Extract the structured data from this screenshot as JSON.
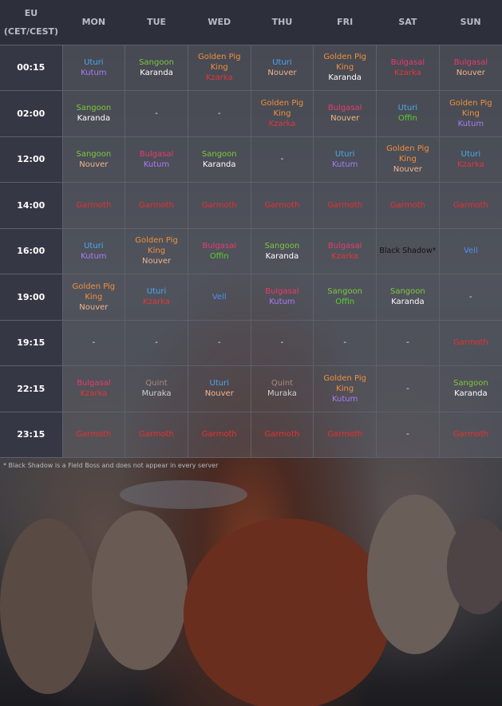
{
  "header": {
    "region": "EU",
    "timezone": "(CET/CEST)",
    "days": [
      "MON",
      "TUE",
      "WED",
      "THU",
      "FRI",
      "SAT",
      "SUN"
    ]
  },
  "boss_colors": {
    "Uturi": "#4aa8f0",
    "Kutum": "#a97cf5",
    "Sangoon": "#7cc93a",
    "Karanda": "#ffffff",
    "Golden Pig King": "#f0903c",
    "Kzarka": "#e0383a",
    "Nouver": "#f2b48a",
    "Bulgasal": "#e83b6a",
    "Offin": "#5ad02a",
    "Garmoth": "#e83030",
    "Vell": "#4a90f0",
    "Quint": "#a8887c",
    "Muraka": "#d0d0d0",
    "Black Shadow*": "#111111",
    "-": "#eeeeee"
  },
  "rows": [
    {
      "time": "00:15",
      "cells": [
        [
          "Uturi",
          "Kutum"
        ],
        [
          "Sangoon",
          "Karanda"
        ],
        [
          "Golden Pig King",
          "Kzarka"
        ],
        [
          "Uturi",
          "Nouver"
        ],
        [
          "Golden Pig King",
          "Karanda"
        ],
        [
          "Bulgasal",
          "Kzarka"
        ],
        [
          "Bulgasal",
          "Nouver"
        ]
      ]
    },
    {
      "time": "02:00",
      "cells": [
        [
          "Sangoon",
          "Karanda"
        ],
        [
          "-"
        ],
        [
          "-"
        ],
        [
          "Golden Pig King",
          "Kzarka"
        ],
        [
          "Bulgasal",
          "Nouver"
        ],
        [
          "Uturi",
          "Offin"
        ],
        [
          "Golden Pig King",
          "Kutum"
        ]
      ]
    },
    {
      "time": "12:00",
      "cells": [
        [
          "Sangoon",
          "Nouver"
        ],
        [
          "Bulgasal",
          "Kutum"
        ],
        [
          "Sangoon",
          "Karanda"
        ],
        [
          "-"
        ],
        [
          "Uturi",
          "Kutum"
        ],
        [
          "Golden Pig King",
          "Nouver"
        ],
        [
          "Uturi",
          "Kzarka"
        ]
      ]
    },
    {
      "time": "14:00",
      "cells": [
        [
          "Garmoth"
        ],
        [
          "Garmoth"
        ],
        [
          "Garmoth"
        ],
        [
          "Garmoth"
        ],
        [
          "Garmoth"
        ],
        [
          "Garmoth"
        ],
        [
          "Garmoth"
        ]
      ]
    },
    {
      "time": "16:00",
      "cells": [
        [
          "Uturi",
          "Kutum"
        ],
        [
          "Golden Pig King",
          "Nouver"
        ],
        [
          "Bulgasal",
          "Offin"
        ],
        [
          "Sangoon",
          "Karanda"
        ],
        [
          "Bulgasal",
          "Kzarka"
        ],
        [
          "Black Shadow*"
        ],
        [
          "Vell"
        ]
      ]
    },
    {
      "time": "19:00",
      "cells": [
        [
          "Golden Pig King",
          "Nouver"
        ],
        [
          "Uturi",
          "Kzarka"
        ],
        [
          "Vell"
        ],
        [
          "Bulgasal",
          "Kutum"
        ],
        [
          "Sangoon",
          "Offin"
        ],
        [
          "Sangoon",
          "Karanda"
        ],
        [
          "-"
        ]
      ]
    },
    {
      "time": "19:15",
      "cells": [
        [
          "-"
        ],
        [
          "-"
        ],
        [
          "-"
        ],
        [
          "-"
        ],
        [
          "-"
        ],
        [
          "-"
        ],
        [
          "Garmoth"
        ]
      ]
    },
    {
      "time": "22:15",
      "cells": [
        [
          "Bulgasal",
          "Kzarka"
        ],
        [
          "Quint",
          "Muraka"
        ],
        [
          "Uturi",
          "Nouver"
        ],
        [
          "Quint",
          "Muraka"
        ],
        [
          "Golden Pig King",
          "Kutum"
        ],
        [
          "-"
        ],
        [
          "Sangoon",
          "Karanda"
        ]
      ]
    },
    {
      "time": "23:15",
      "cells": [
        [
          "Garmoth"
        ],
        [
          "Garmoth"
        ],
        [
          "Garmoth"
        ],
        [
          "Garmoth"
        ],
        [
          "Garmoth"
        ],
        [
          "-"
        ],
        [
          "Garmoth"
        ]
      ]
    }
  ],
  "footnote": "* Black Shadow is a Field Boss and does not appear in every server"
}
